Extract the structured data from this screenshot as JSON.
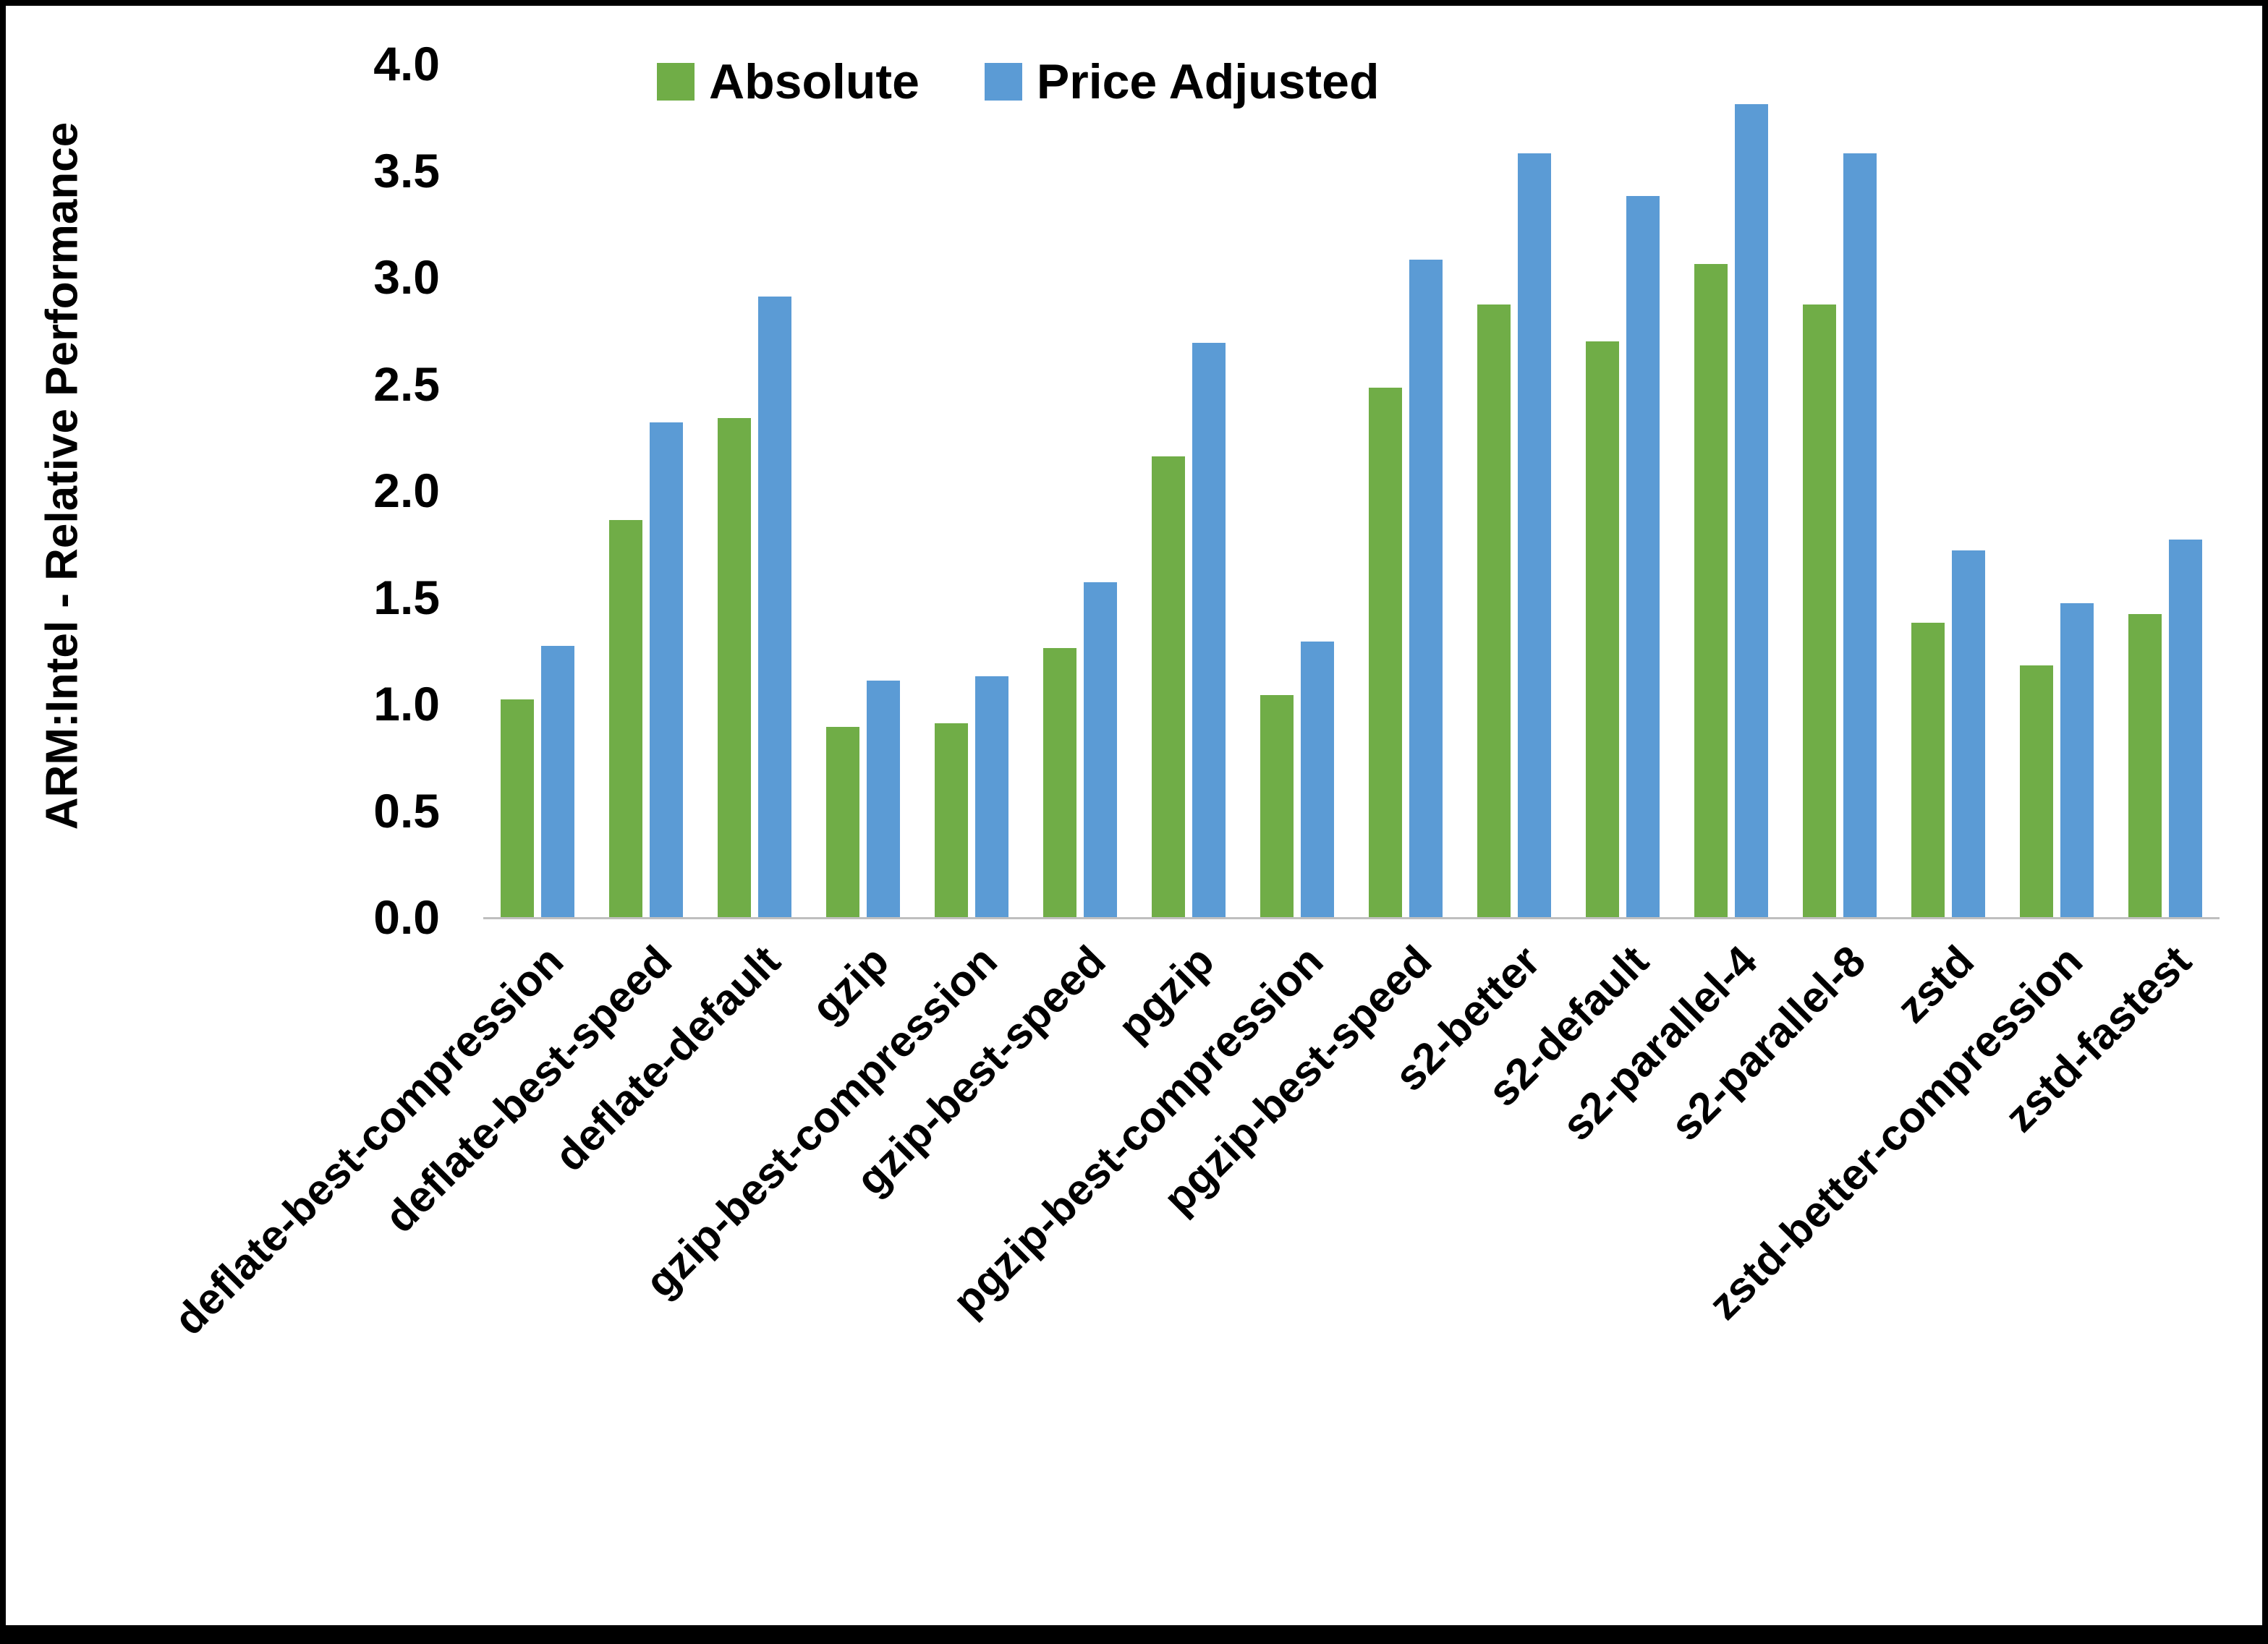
{
  "chart_data": {
    "type": "bar",
    "title": "",
    "xlabel": "",
    "ylabel": "ARM:Intel - Relative Performance",
    "ylim": [
      0.0,
      4.0
    ],
    "ytick_step": 0.5,
    "grid": false,
    "legend_position": "top-center",
    "categories": [
      "deflate-best-compression",
      "deflate-best-speed",
      "deflate-default",
      "gzip",
      "gzip-best-compression",
      "gzip-best-speed",
      "pgzip",
      "pgzip-best-compression",
      "pgzip-best-speed",
      "s2-better",
      "s2-default",
      "s2-parallel-4",
      "s2-parallel-8",
      "zstd",
      "zstd-better-compression",
      "zstd-fastest"
    ],
    "series": [
      {
        "name": "Absolute",
        "color": "#70AD47",
        "values": [
          1.02,
          1.86,
          2.34,
          0.89,
          0.91,
          1.26,
          2.16,
          1.04,
          2.48,
          2.87,
          2.7,
          3.06,
          2.87,
          1.38,
          1.18,
          1.42
        ]
      },
      {
        "name": "Price Adjusted",
        "color": "#5B9BD5",
        "values": [
          1.27,
          2.32,
          2.91,
          1.11,
          1.13,
          1.57,
          2.69,
          1.29,
          3.08,
          3.58,
          3.38,
          3.81,
          3.58,
          1.72,
          1.47,
          1.77
        ]
      }
    ]
  }
}
